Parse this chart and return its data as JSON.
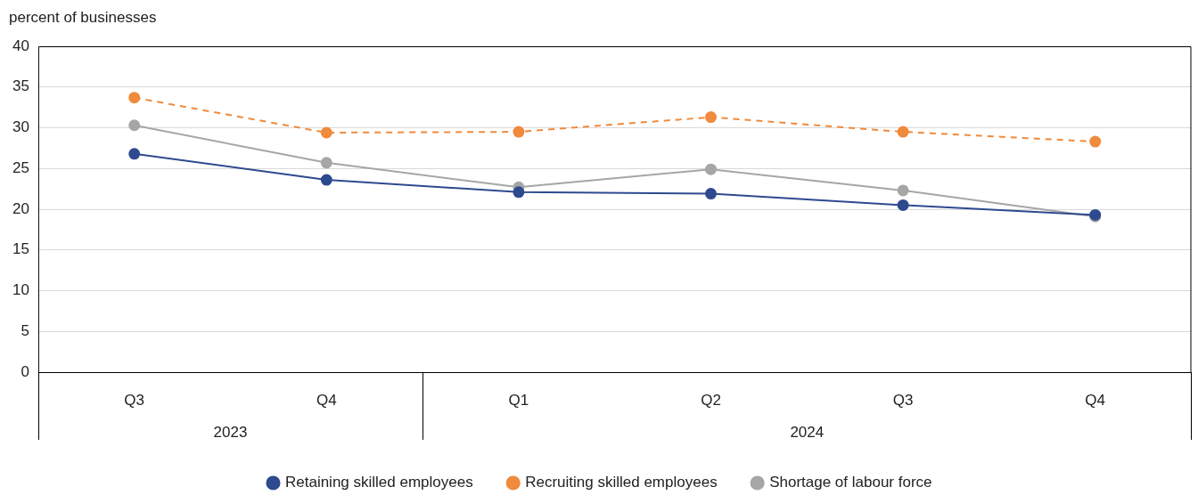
{
  "chart_data": {
    "type": "line",
    "ylabel": "percent of businesses",
    "categories": [
      "Q3",
      "Q4",
      "Q1",
      "Q2",
      "Q3",
      "Q4"
    ],
    "series": [
      {
        "name": "Retaining skilled employees",
        "color": "#2e4a8f",
        "values": [
          26.8,
          23.6,
          22.1,
          21.9,
          20.5,
          19.3
        ]
      },
      {
        "name": "Recruiting skilled employees",
        "color": "#f08a3c",
        "line_style": "dashed",
        "values": [
          33.7,
          29.4,
          29.5,
          31.3,
          29.5,
          28.3
        ]
      },
      {
        "name": "Shortage of labour force",
        "color": "#a6a6a6",
        "values": [
          30.3,
          25.7,
          22.7,
          24.9,
          22.3,
          19.1
        ]
      }
    ],
    "annotations": [
      "2023",
      "2024"
    ],
    "ylim": [
      0,
      40
    ],
    "yticks": [
      0,
      5,
      10,
      15,
      20,
      25,
      30,
      35,
      40
    ],
    "grid": "y",
    "legend": "bottom",
    "marker": "circle",
    "line_style": "solid"
  }
}
